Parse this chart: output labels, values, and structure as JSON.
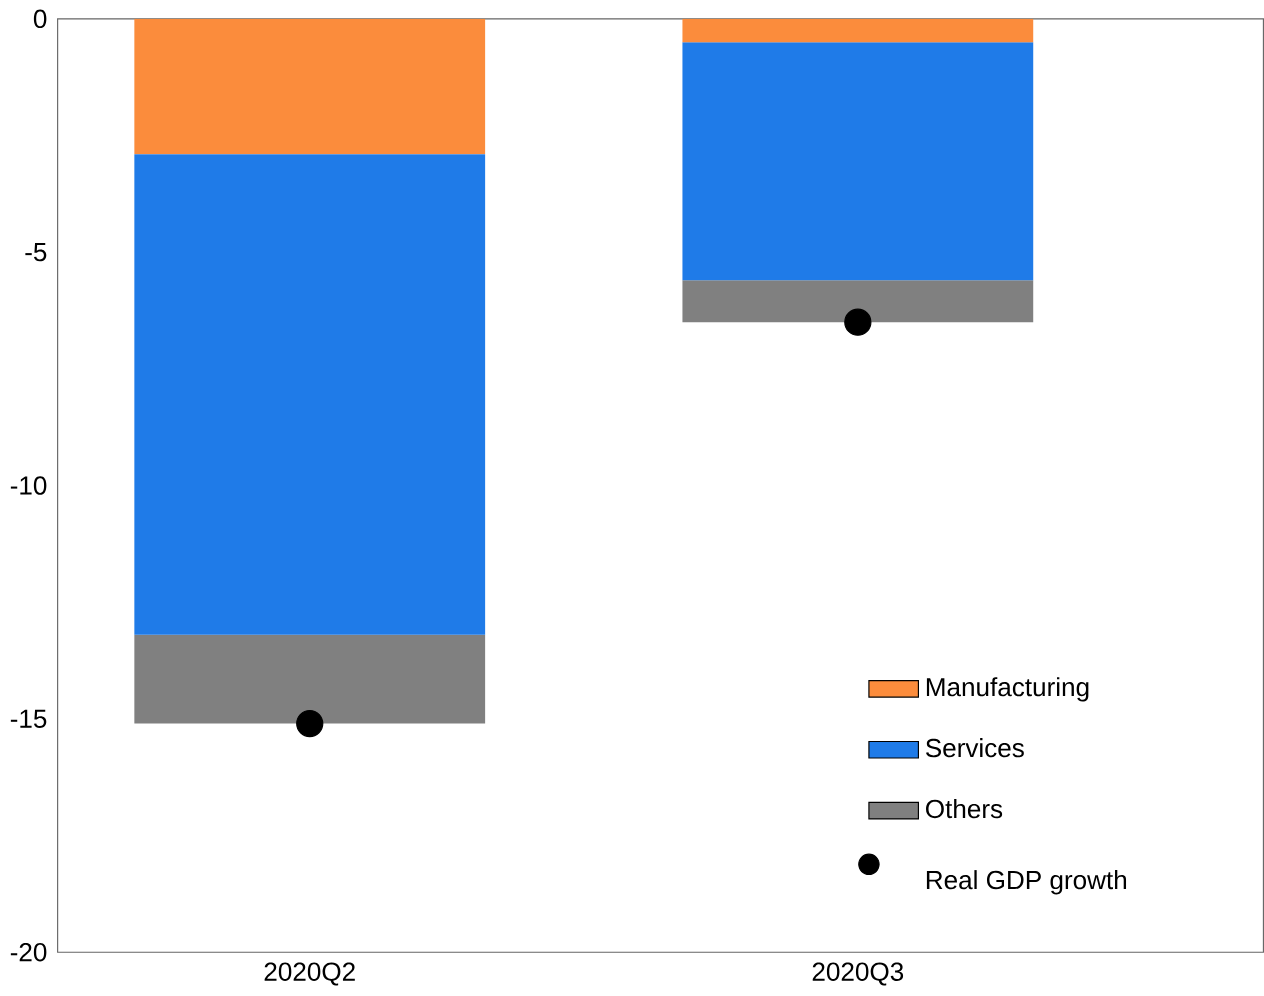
{
  "chart_data": {
    "type": "bar",
    "stacked": true,
    "categories": [
      "2020Q2",
      "2020Q3"
    ],
    "series": [
      {
        "name": "Manufacturing",
        "color": "#fb8c3c",
        "values": [
          -2.9,
          -0.5
        ]
      },
      {
        "name": "Services",
        "color": "#1f7be8",
        "values": [
          -10.3,
          -5.1
        ]
      },
      {
        "name": "Others",
        "color": "#808080",
        "values": [
          -1.9,
          -0.9
        ]
      },
      {
        "name": "Real GDP growth",
        "type": "scatter",
        "marker": "circle",
        "color": "#000000",
        "x": [
          "2020Q2",
          "2020Q3"
        ],
        "values": [
          -15.1,
          -6.5
        ]
      }
    ],
    "ylim": [
      -20,
      0
    ],
    "yticks": [
      -20,
      -15,
      -10,
      -5,
      0
    ],
    "grid": false,
    "legend": "bottom right"
  }
}
